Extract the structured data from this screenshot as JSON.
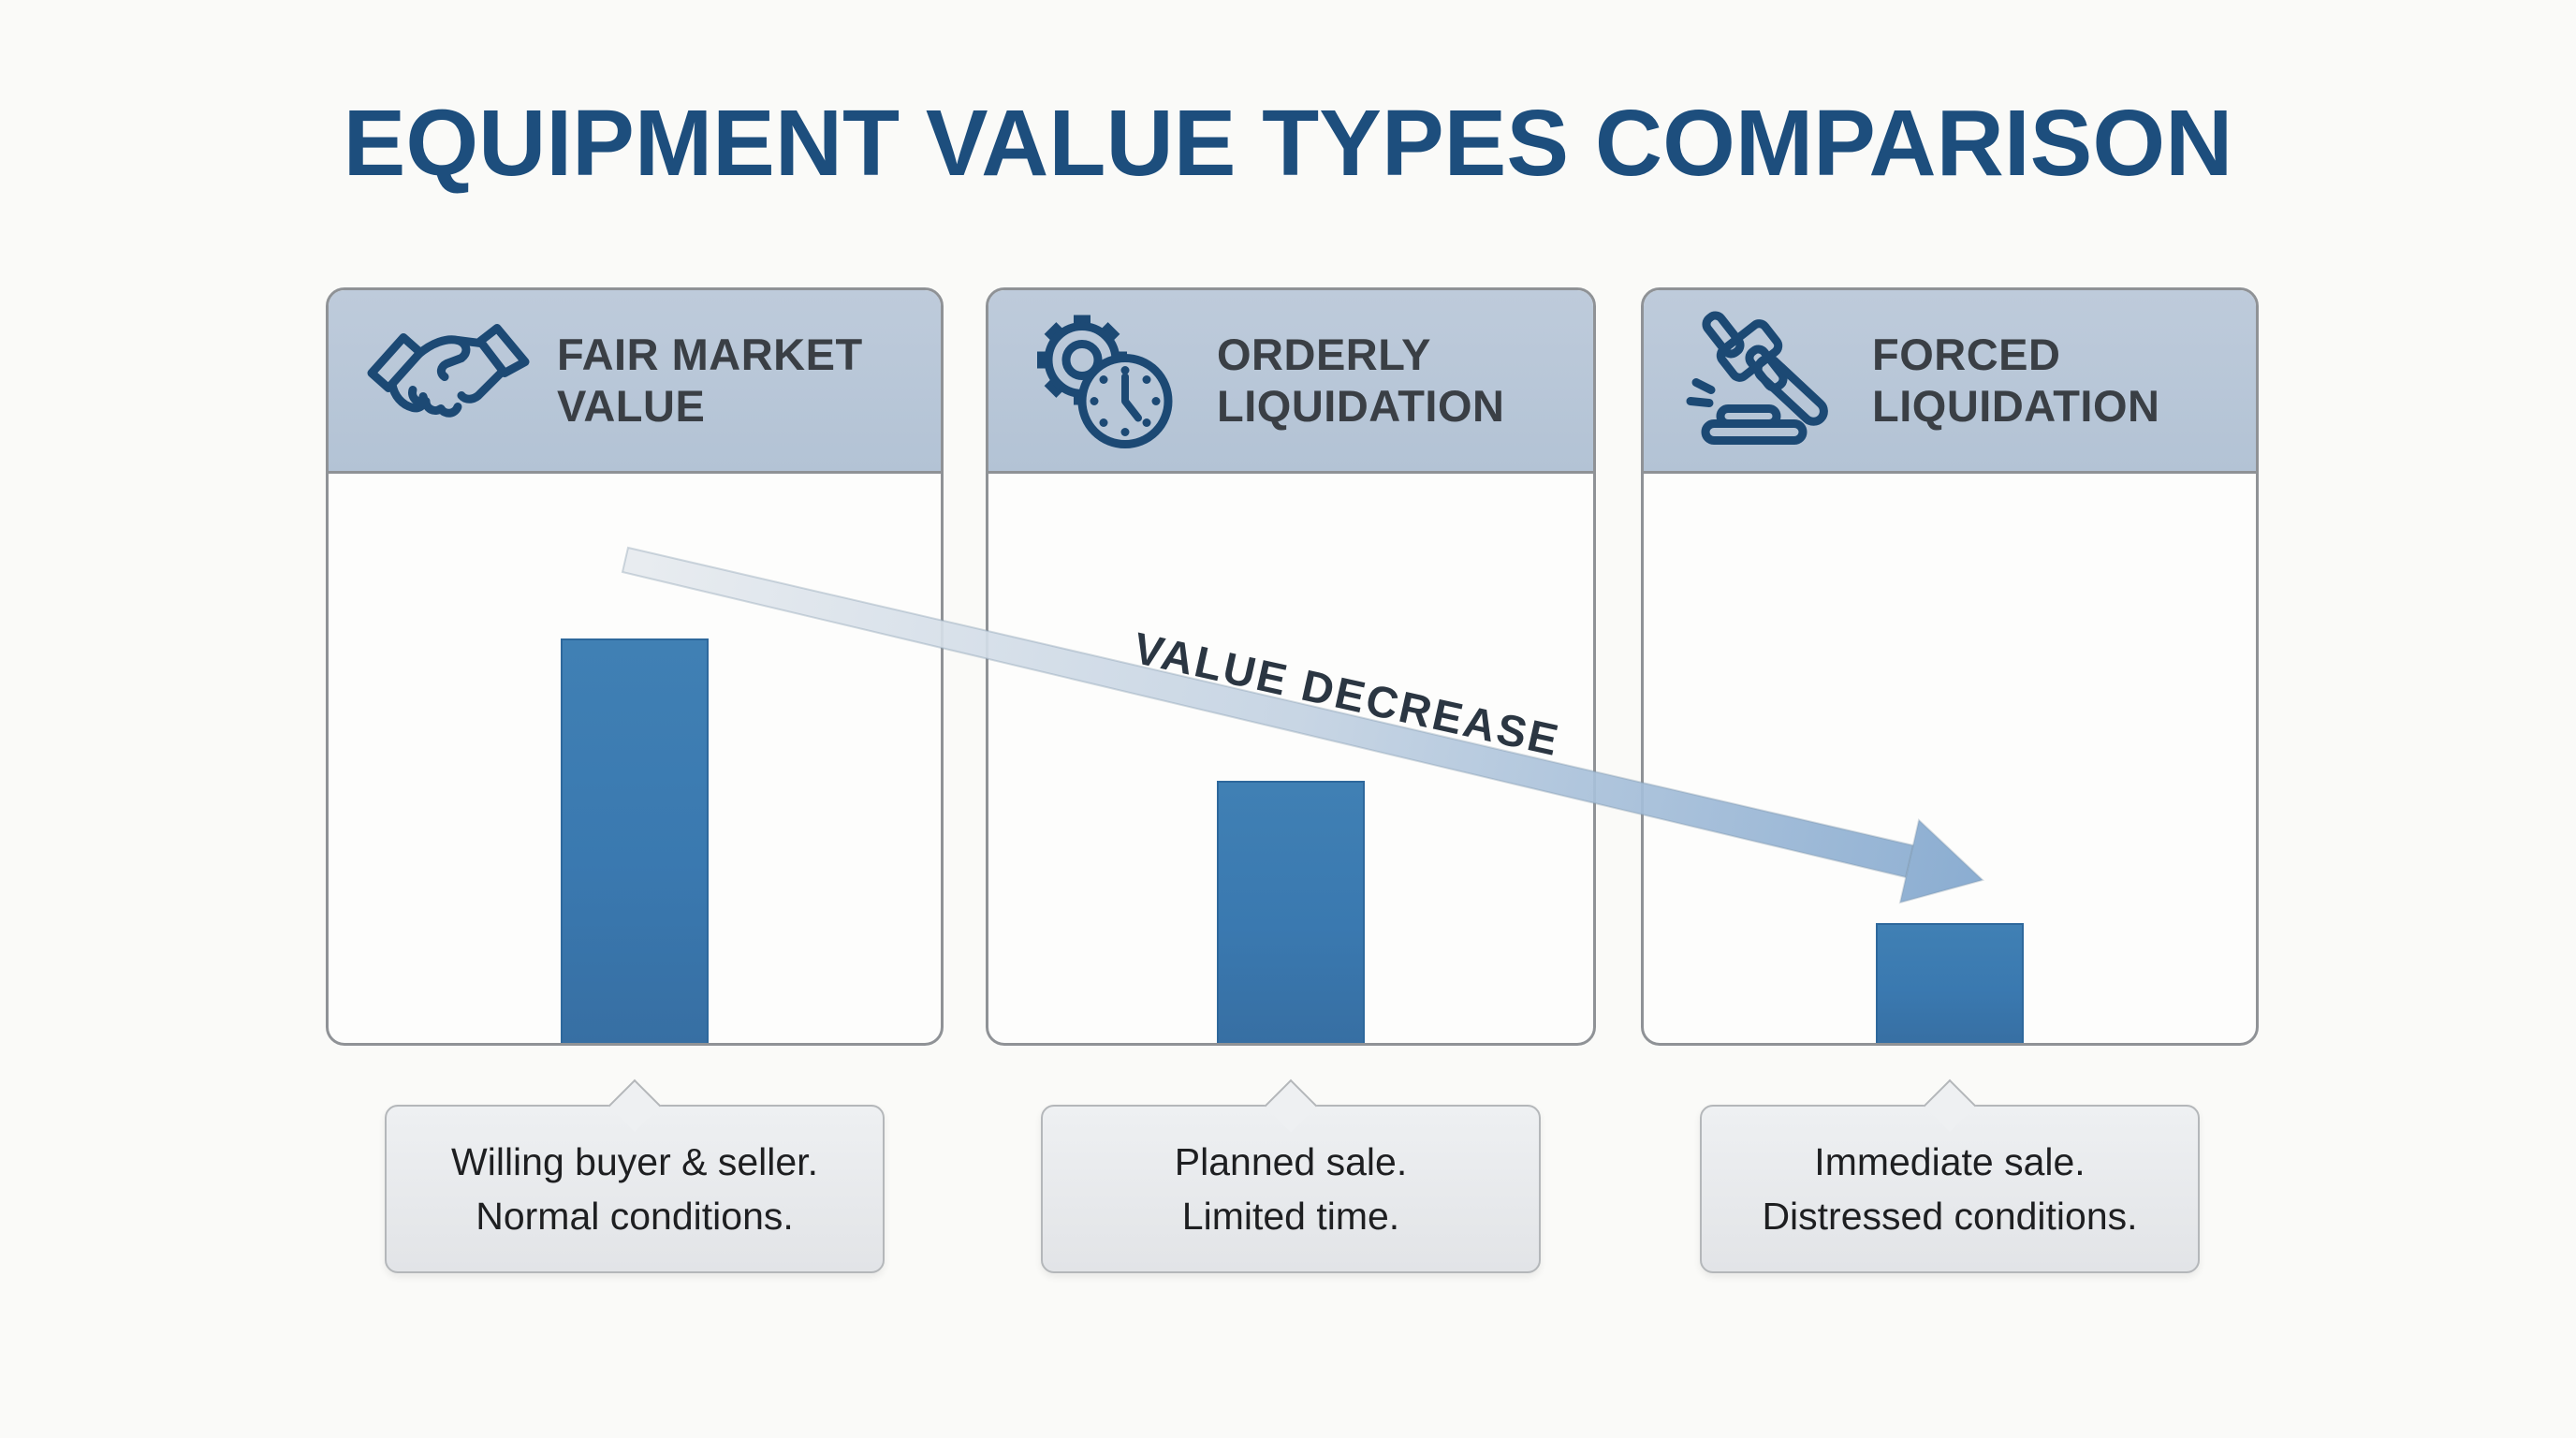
{
  "title": "EQUIPMENT VALUE TYPES COMPARISON",
  "arrow": {
    "label": "VALUE DECREASE"
  },
  "colors": {
    "title": "#1d4e7d",
    "icon_navy": "#1c4974",
    "header_bg": "#b8c7d8",
    "card_border": "#8f9296",
    "bar_blue": "#3a79b0",
    "arrow_gradient_start": "#e7ebef",
    "arrow_gradient_end": "#85a9cf",
    "caption_bg": "#eaecee",
    "background": "#fafaf8"
  },
  "cards": [
    {
      "id": "fair-market-value",
      "icon": "handshake-icon",
      "title_line1": "FAIR MARKET",
      "title_line2": "VALUE",
      "bar_height_pct": 71,
      "caption_line1": "Willing buyer & seller.",
      "caption_line2": "Normal conditions."
    },
    {
      "id": "orderly-liquidation",
      "icon": "gear-clock-icon",
      "title_line1": "ORDERLY",
      "title_line2": "LIQUIDATION",
      "bar_height_pct": 46,
      "caption_line1": "Planned sale.",
      "caption_line2": "Limited time."
    },
    {
      "id": "forced-liquidation",
      "icon": "gavel-icon",
      "title_line1": "FORCED",
      "title_line2": "LIQUIDATION",
      "bar_height_pct": 21,
      "caption_line1": "Immediate sale.",
      "caption_line2": "Distressed conditions."
    }
  ],
  "chart_data": {
    "type": "bar",
    "title": "Equipment Value Types Comparison",
    "categories": [
      "Fair Market Value",
      "Orderly Liquidation",
      "Forced Liquidation"
    ],
    "values": [
      71,
      46,
      21
    ],
    "unit": "relative value, % of panel height (no numeric axis shown)",
    "annotations": [
      "VALUE DECREASE"
    ],
    "legend": "none",
    "grid": false
  }
}
